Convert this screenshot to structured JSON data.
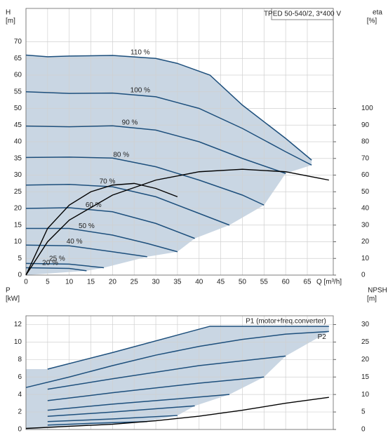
{
  "chart_data": [
    {
      "type": "line",
      "title": "TPED 50-540/2, 3*400 V",
      "y_label": "H",
      "y_unit": "[m]",
      "y2_label": "eta",
      "y2_unit": "[%]",
      "x_label": "Q [m³/h]",
      "xlim": [
        0,
        71
      ],
      "ylim": [
        0,
        80
      ],
      "y2lim": [
        0,
        160
      ],
      "xticks": [
        0,
        5,
        10,
        15,
        20,
        25,
        30,
        35,
        40,
        45,
        50,
        55,
        60,
        65
      ],
      "xtick_labels": true,
      "yticks": [
        0,
        5,
        10,
        15,
        20,
        25,
        30,
        35,
        40,
        45,
        50,
        55,
        60,
        65,
        70
      ],
      "y2ticks": [
        0,
        10,
        20,
        30,
        40,
        50,
        60,
        70,
        80,
        90,
        100
      ],
      "grid": true,
      "fill": "#c9d6e3",
      "series": [
        {
          "name": "110 %",
          "color": "#1d4f7c",
          "x": [
            0,
            5,
            10,
            20,
            30,
            35,
            42.5,
            50,
            60,
            66
          ],
          "values": [
            66,
            65.5,
            65.7,
            65.9,
            65,
            63.5,
            60,
            51,
            41,
            34.5
          ]
        },
        {
          "name": "100 %",
          "color": "#1d4f7c",
          "x": [
            0,
            10,
            20,
            30,
            40,
            50,
            60,
            66
          ],
          "values": [
            55,
            54.5,
            54.6,
            53.5,
            50,
            44,
            37,
            33
          ]
        },
        {
          "name": "90 %",
          "color": "#1d4f7c",
          "x": [
            0,
            10,
            20,
            30,
            40,
            50,
            60
          ],
          "values": [
            44.7,
            44.5,
            44.8,
            43.5,
            40,
            35,
            30.5
          ]
        },
        {
          "name": "80 %",
          "color": "#1d4f7c",
          "x": [
            0,
            10,
            20,
            30,
            40,
            50,
            55
          ],
          "values": [
            35.3,
            35.4,
            35.1,
            32.5,
            28.5,
            24,
            21
          ]
        },
        {
          "name": "70 %",
          "color": "#1d4f7c",
          "x": [
            0,
            10,
            20,
            30,
            40,
            47
          ],
          "values": [
            27,
            27.2,
            26.5,
            23.5,
            18.5,
            15
          ]
        },
        {
          "name": "60 %",
          "color": "#1d4f7c",
          "x": [
            0,
            10,
            20,
            30,
            39
          ],
          "values": [
            20,
            20.2,
            19,
            15.5,
            11
          ]
        },
        {
          "name": "50 %",
          "color": "#1d4f7c",
          "x": [
            0,
            10,
            20,
            28,
            35
          ],
          "values": [
            14,
            14,
            12,
            9.5,
            7
          ]
        },
        {
          "name": "40 %",
          "color": "#1d4f7c",
          "x": [
            0,
            10,
            20,
            28
          ],
          "values": [
            9,
            8.8,
            7,
            5.5
          ]
        },
        {
          "name": "25 %",
          "color": "#1d4f7c",
          "x": [
            0,
            10,
            18
          ],
          "values": [
            3.5,
            3.3,
            2.2
          ]
        },
        {
          "name": "20 %",
          "color": "#1d4f7c",
          "x": [
            0,
            10,
            14
          ],
          "values": [
            2.2,
            2,
            1.3
          ]
        },
        {
          "color": "#000000",
          "axis": "y2",
          "x": [
            0,
            5,
            10,
            20,
            30,
            40,
            50,
            60,
            70
          ],
          "values": [
            0,
            20,
            33,
            48,
            57,
            62,
            63.5,
            62,
            57
          ]
        },
        {
          "color": "#000000",
          "axis": "y2",
          "x": [
            0,
            5,
            10,
            15,
            20,
            25,
            30,
            35
          ],
          "values": [
            0,
            28,
            42,
            50,
            54,
            55,
            52,
            47
          ]
        }
      ]
    },
    {
      "type": "line",
      "y_label": "P",
      "y_unit": "[kW]",
      "y2_label": "NPSH",
      "y2_unit": "[m]",
      "xlim": [
        0,
        71
      ],
      "ylim": [
        0,
        13
      ],
      "y2lim": [
        0,
        32.5
      ],
      "xticks": [
        0,
        5,
        10,
        15,
        20,
        25,
        30,
        35,
        40,
        45,
        50,
        55,
        60,
        65
      ],
      "xtick_labels": false,
      "yticks": [
        0,
        2,
        4,
        6,
        8,
        10,
        12
      ],
      "y2ticks": [
        0,
        5,
        10,
        15,
        20,
        25,
        30
      ],
      "grid": true,
      "fill": "#c9d6e3",
      "series": [
        {
          "name": "P1 (motor+freq.converter)",
          "color": "#1d4f7c",
          "x": [
            5,
            20,
            42.5,
            70
          ],
          "values": [
            6.9,
            8.8,
            11.8,
            11.8
          ]
        },
        {
          "name": "P2",
          "color": "#1d4f7c",
          "x": [
            0,
            10,
            20,
            30,
            40,
            50,
            60,
            70
          ],
          "values": [
            4.8,
            6,
            7.3,
            8.5,
            9.5,
            10.3,
            10.9,
            11.2
          ]
        },
        {
          "color": "#1d4f7c",
          "x": [
            5,
            20,
            40,
            60
          ],
          "values": [
            4.6,
            5.8,
            7.3,
            8.4
          ]
        },
        {
          "color": "#1d4f7c",
          "x": [
            5,
            20,
            40,
            55
          ],
          "values": [
            3.3,
            4.2,
            5.3,
            6
          ]
        },
        {
          "color": "#1d4f7c",
          "x": [
            5,
            20,
            35,
            47
          ],
          "values": [
            2.2,
            2.9,
            3.5,
            4
          ]
        },
        {
          "color": "#1d4f7c",
          "x": [
            5,
            20,
            39
          ],
          "values": [
            1.5,
            2,
            2.7
          ]
        },
        {
          "color": "#1d4f7c",
          "x": [
            5,
            20,
            35
          ],
          "values": [
            0.9,
            1.2,
            1.6
          ]
        },
        {
          "color": "#1d4f7c",
          "x": [
            5,
            15,
            28
          ],
          "values": [
            0.5,
            0.7,
            0.9
          ]
        },
        {
          "color": "#000000",
          "axis": "y2",
          "x": [
            0,
            20,
            30,
            40,
            50,
            60,
            70
          ],
          "values": [
            0.3,
            1.5,
            2.5,
            3.8,
            5.5,
            7.5,
            9.2
          ]
        }
      ]
    }
  ]
}
